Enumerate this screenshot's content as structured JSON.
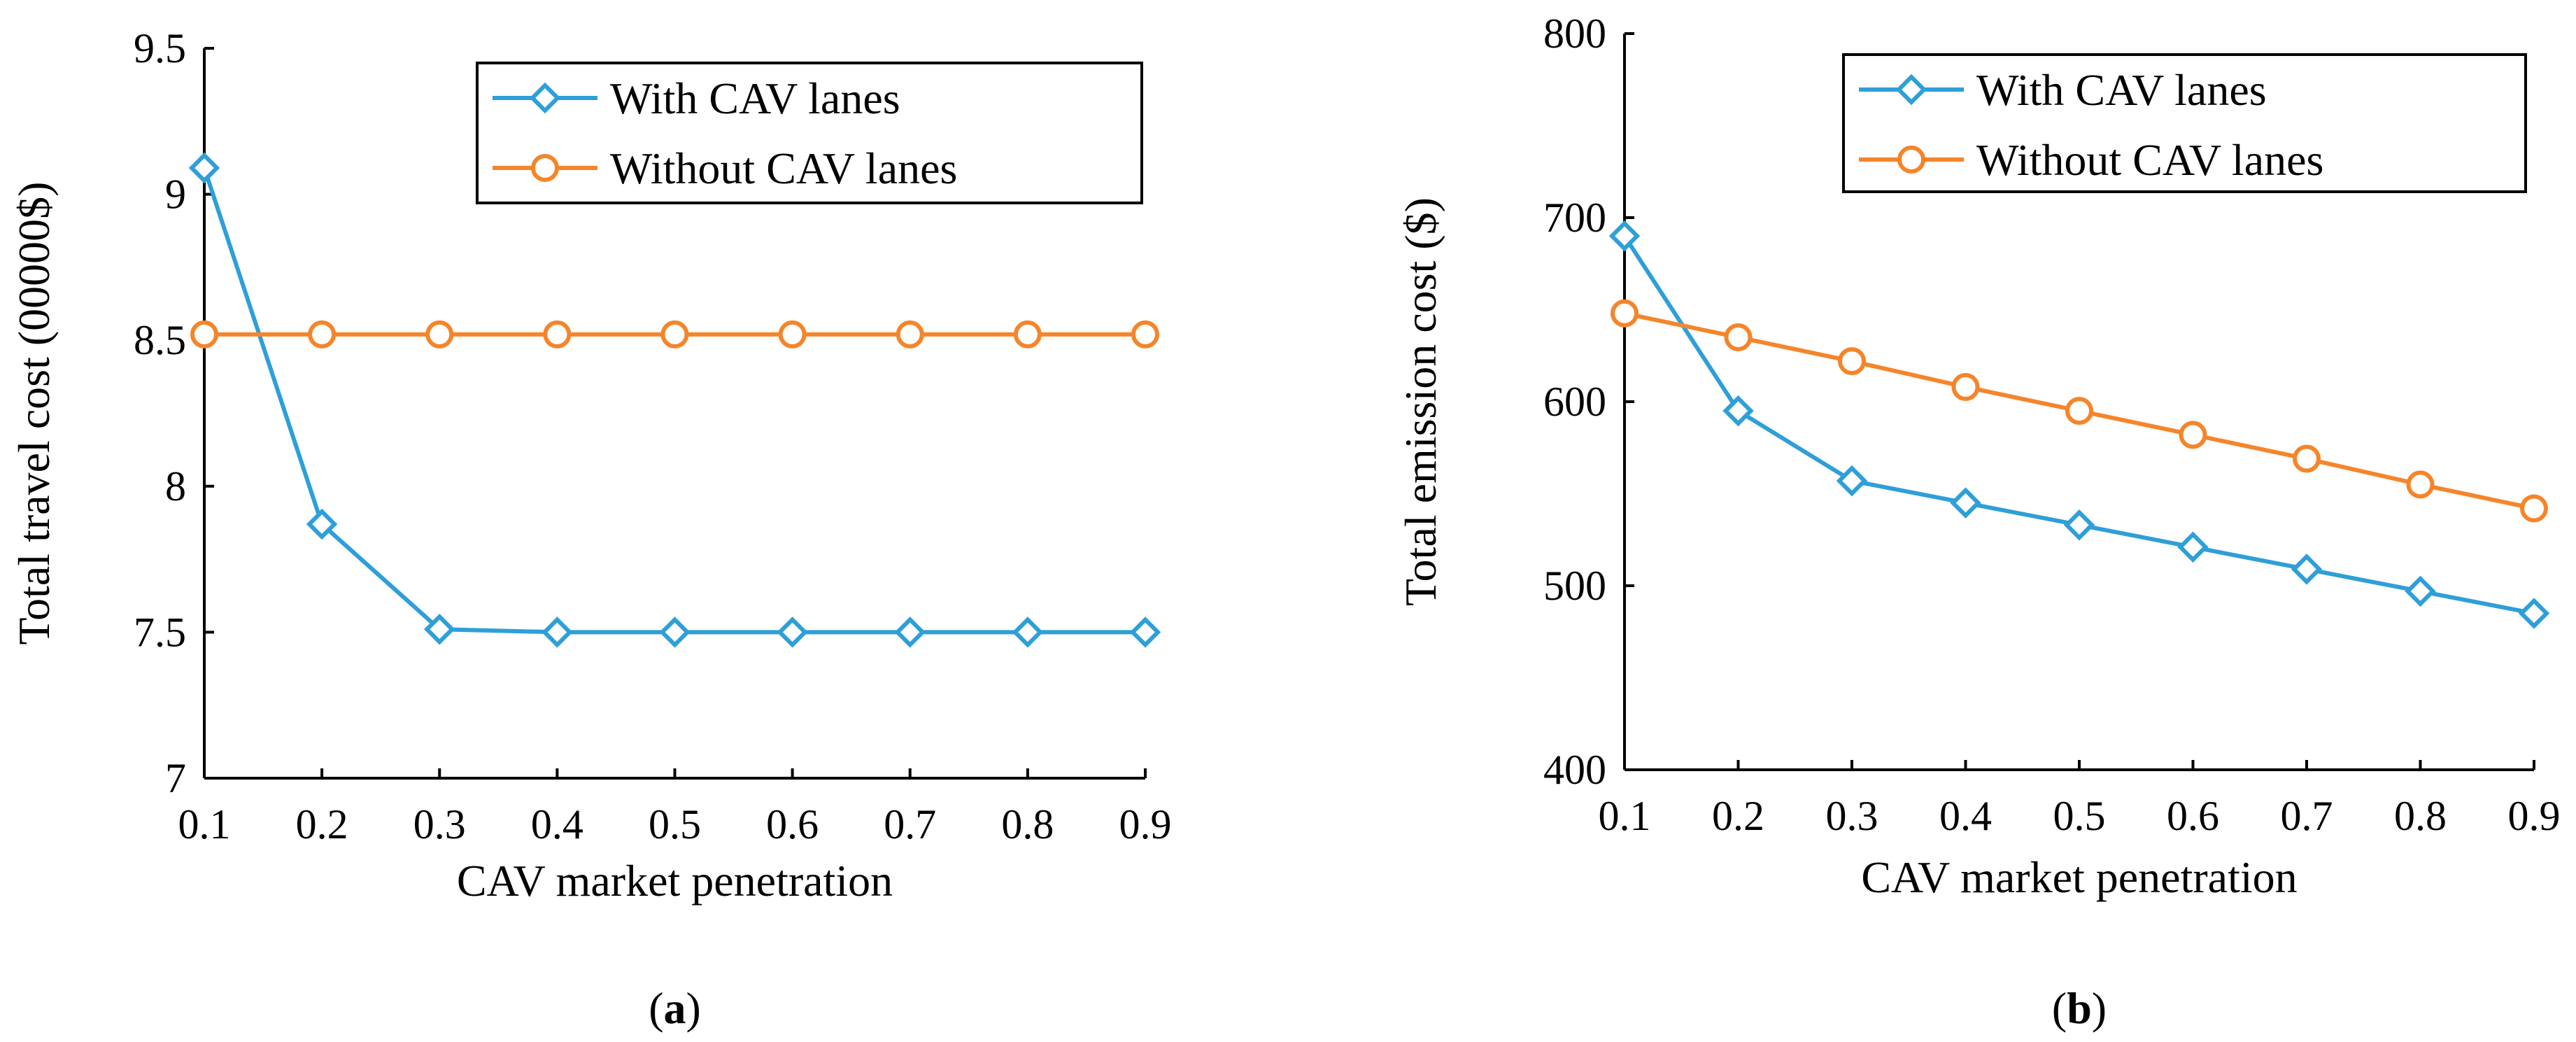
{
  "chart_data": [
    {
      "type": "line",
      "panel_label": "a",
      "title": "",
      "xlabel": "CAV market penetration",
      "ylabel": "Total travel cost (00000$)",
      "x": [
        0.1,
        0.2,
        0.3,
        0.4,
        0.5,
        0.6,
        0.7,
        0.8,
        0.9
      ],
      "x_tick_labels": [
        "0.1",
        "0.2",
        "0.3",
        "0.4",
        "0.5",
        "0.6",
        "0.7",
        "0.8",
        "0.9"
      ],
      "xlim": [
        0.1,
        0.9
      ],
      "ylim": [
        7,
        9.5
      ],
      "y_ticks": [
        7,
        7.5,
        8,
        8.5,
        9,
        9.5
      ],
      "y_tick_labels": [
        "7",
        "7.5",
        "8",
        "8.5",
        "9",
        "9.5"
      ],
      "legend_position": "top-right",
      "series": [
        {
          "name": "With CAV lanes",
          "color": "#2E9FD8",
          "marker": "diamond",
          "values": [
            9.09,
            7.87,
            7.51,
            7.5,
            7.5,
            7.5,
            7.5,
            7.5,
            7.5
          ]
        },
        {
          "name": "Without CAV lanes",
          "color": "#F5852A",
          "marker": "circle",
          "values": [
            8.52,
            8.52,
            8.52,
            8.52,
            8.52,
            8.52,
            8.52,
            8.52,
            8.52
          ]
        }
      ]
    },
    {
      "type": "line",
      "panel_label": "b",
      "title": "",
      "xlabel": "CAV market penetration",
      "ylabel": "Total emission cost ($)",
      "x": [
        0.1,
        0.2,
        0.3,
        0.4,
        0.5,
        0.6,
        0.7,
        0.8,
        0.9
      ],
      "x_tick_labels": [
        "0.1",
        "0.2",
        "0.3",
        "0.4",
        "0.5",
        "0.6",
        "0.7",
        "0.8",
        "0.9"
      ],
      "xlim": [
        0.1,
        0.9
      ],
      "ylim": [
        400,
        800
      ],
      "y_ticks": [
        400,
        500,
        600,
        700,
        800
      ],
      "y_tick_labels": [
        "400",
        "500",
        "600",
        "700",
        "800"
      ],
      "legend_position": "top-right",
      "series": [
        {
          "name": "With CAV lanes",
          "color": "#2E9FD8",
          "marker": "diamond",
          "values": [
            690,
            595,
            557,
            545,
            533,
            521,
            509,
            497,
            485
          ]
        },
        {
          "name": "Without CAV lanes",
          "color": "#F5852A",
          "marker": "circle",
          "values": [
            648,
            635,
            622,
            608,
            595,
            582,
            569,
            555,
            542
          ]
        }
      ]
    }
  ]
}
